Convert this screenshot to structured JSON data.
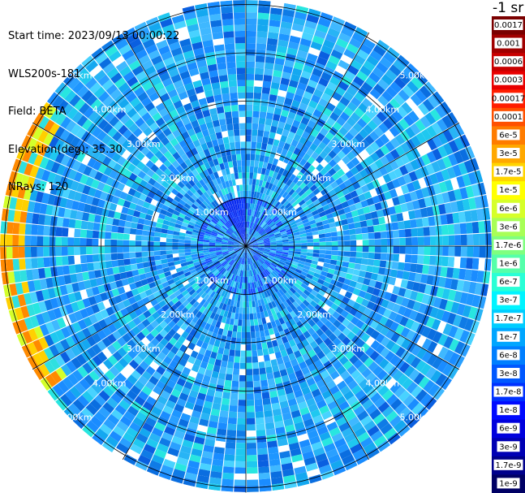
{
  "info": {
    "start_time": "Start time: 2023/09/13 00:00:22",
    "instrument": "WLS200s-181",
    "field": "Field: BETA",
    "elevation": "Elevation(deg): 35.30",
    "nrays": "NRays: 120"
  },
  "unit": "-1 sr",
  "map_data": {
    "type": "ppi-scan",
    "rings_km": [
      1,
      2,
      3,
      4,
      5
    ],
    "ring_labels": [
      "1.00km",
      "2.00km",
      "3.00km",
      "4.00km",
      "5.00km"
    ],
    "spokes_deg": [
      0,
      30,
      60,
      90,
      120,
      150,
      180,
      210,
      240,
      270,
      300,
      330
    ],
    "max_range_km": 5.1,
    "rays": 120
  },
  "colorbar": {
    "labels": [
      "0.0017",
      "0.001",
      "0.0006",
      "0.0003",
      "0.00017",
      "0.0001",
      "6e-5",
      "3e-5",
      "1.7e-5",
      "1e-5",
      "6e-6",
      "3e-6",
      "1.7e-6",
      "1e-6",
      "6e-7",
      "3e-7",
      "1.7e-7",
      "1e-7",
      "6e-8",
      "3e-8",
      "1.7e-8",
      "1e-8",
      "6e-9",
      "3e-9",
      "1.7e-9",
      "1e-9"
    ],
    "colors": [
      "#7a0000",
      "#a00000",
      "#c80000",
      "#e80000",
      "#ff1e00",
      "#ff5000",
      "#ff7c00",
      "#ffa800",
      "#ffd400",
      "#ffff00",
      "#d6ff29",
      "#a8ff57",
      "#7fff7f",
      "#55ffaa",
      "#29ffd6",
      "#00f4ff",
      "#00cdff",
      "#00a6ff",
      "#007fff",
      "#0058ff",
      "#0031ff",
      "#000aff",
      "#0000dd",
      "#0000b4",
      "#00008b",
      "#000064"
    ]
  }
}
